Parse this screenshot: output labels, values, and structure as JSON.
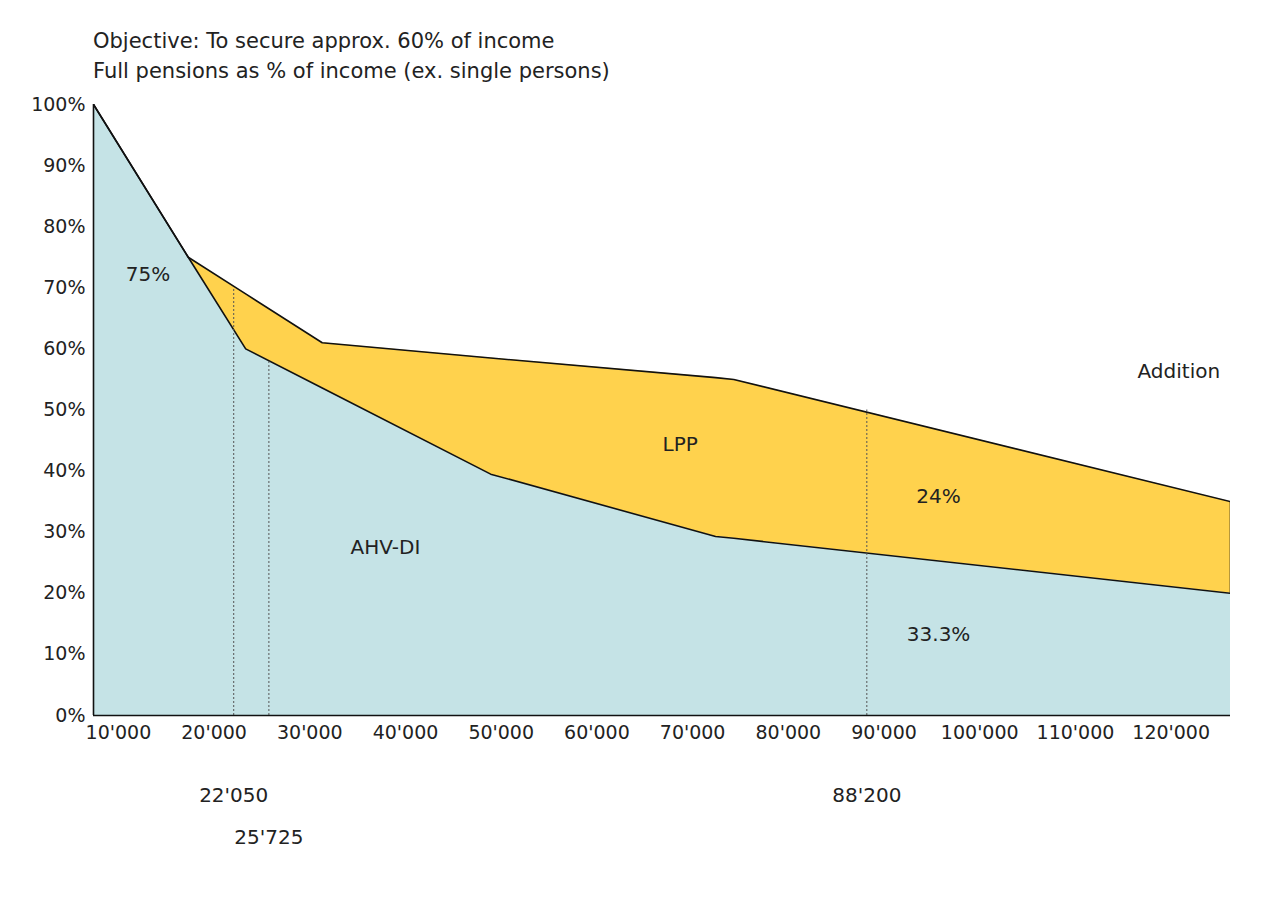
{
  "chart_data": {
    "type": "area",
    "title": "Objective: To secure approx. 60% of income",
    "subtitle": "Full pensions as % of income (ex. single persons)",
    "stacked": true,
    "grid": false,
    "x": [
      7400,
      17300,
      23300,
      31300,
      48900,
      72400,
      74300,
      126200
    ],
    "series": [
      {
        "name": "AHV-DI",
        "color": "#c5e3e6",
        "values": [
          100,
          75,
          60,
          53.6,
          39.5,
          29.3,
          29,
          20
        ],
        "label_x": 37900,
        "label_y": 27.5
      },
      {
        "name": "LPP",
        "color": "#ffd24d",
        "values": [
          0,
          0,
          9,
          7.4,
          19,
          26,
          26,
          15
        ],
        "label_x": 68700,
        "label_y": 44.4
      }
    ],
    "xlim": [
      7400,
      126200
    ],
    "xticks": [
      {
        "value": 10000,
        "label": "10'000"
      },
      {
        "value": 20000,
        "label": "20'000"
      },
      {
        "value": 30000,
        "label": "30'000"
      },
      {
        "value": 40000,
        "label": "40'000"
      },
      {
        "value": 50000,
        "label": "50'000"
      },
      {
        "value": 60000,
        "label": "60'000"
      },
      {
        "value": 70000,
        "label": "70'000"
      },
      {
        "value": 80000,
        "label": "80'000"
      },
      {
        "value": 90000,
        "label": "90'000"
      },
      {
        "value": 100000,
        "label": "100'000"
      },
      {
        "value": 110000,
        "label": "110'000"
      },
      {
        "value": 120000,
        "label": "120'000"
      }
    ],
    "ylim": [
      0,
      100
    ],
    "yticks": [
      {
        "value": 0,
        "label": "0%"
      },
      {
        "value": 10,
        "label": "10%"
      },
      {
        "value": 20,
        "label": "20%"
      },
      {
        "value": 30,
        "label": "30%"
      },
      {
        "value": 40,
        "label": "40%"
      },
      {
        "value": 50,
        "label": "50%"
      },
      {
        "value": 60,
        "label": "60%"
      },
      {
        "value": 70,
        "label": "70%"
      },
      {
        "value": 80,
        "label": "80%"
      },
      {
        "value": 90,
        "label": "90%"
      },
      {
        "value": 100,
        "label": "100%"
      }
    ],
    "reference_lines": [
      {
        "value": 22050,
        "label": "22'050",
        "y": 70
      },
      {
        "value": 25725,
        "label": "25'725",
        "y": 58
      },
      {
        "value": 88200,
        "label": "88'200",
        "y": 50
      }
    ],
    "annotations": [
      {
        "text": "75%",
        "x": 13100,
        "y": 72.2
      },
      {
        "text": "24%",
        "x": 95700,
        "y": 35.8
      },
      {
        "text": "33.3%",
        "x": 95700,
        "y": 13.3
      },
      {
        "text": "Addition",
        "x": 120800,
        "y": 56.3
      }
    ]
  }
}
